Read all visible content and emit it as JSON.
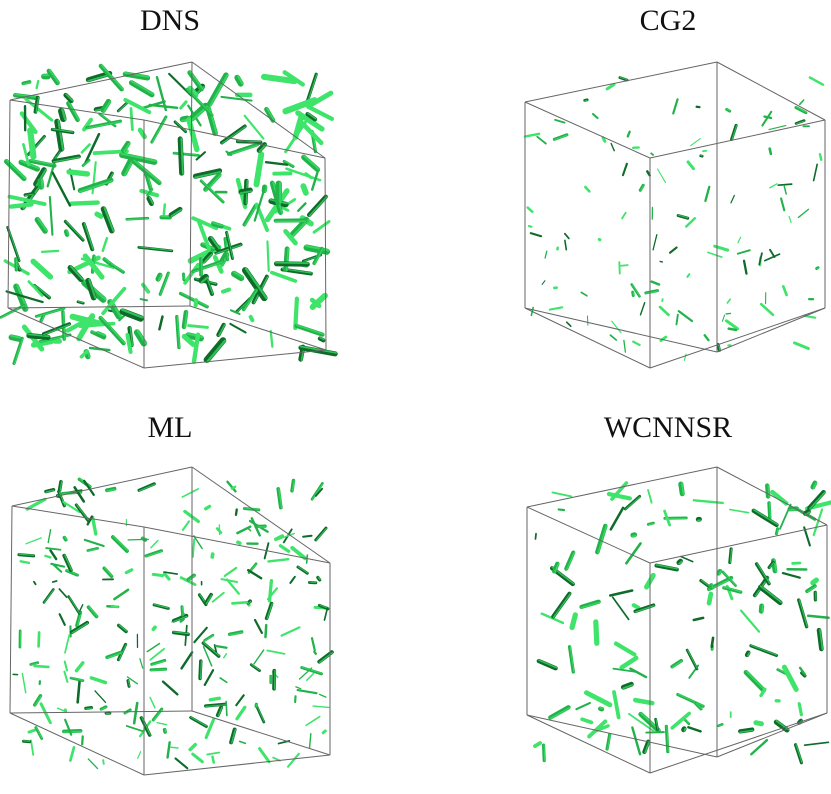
{
  "figure": {
    "panels": [
      {
        "id": "dns",
        "title": "DNS",
        "density": 1.0,
        "tubeScale": 1.25
      },
      {
        "id": "cg2",
        "title": "CG2",
        "density": 0.42,
        "tubeScale": 0.6
      },
      {
        "id": "ml",
        "title": "ML",
        "density": 0.9,
        "tubeScale": 0.75
      },
      {
        "id": "wcnnsr",
        "title": "WCNNSR",
        "density": 0.5,
        "tubeScale": 1.0
      }
    ],
    "colors": {
      "background": "#ffffff",
      "box_edge": "#666666",
      "structure_light": "#3fe46a",
      "structure_mid": "#22b24a",
      "structure_dark": "#0e6b2a",
      "title_text": "#111111"
    }
  }
}
